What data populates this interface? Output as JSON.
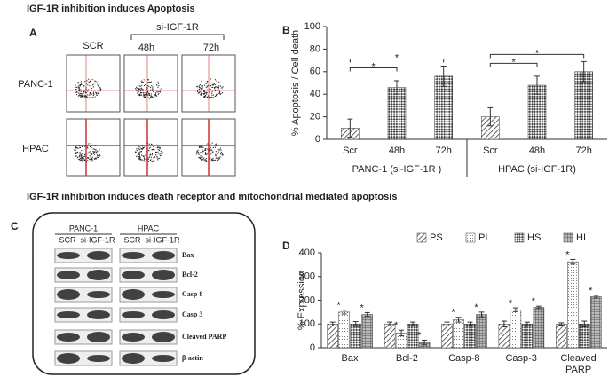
{
  "headings": [
    "IGF-1R inhibition induces Apoptosis",
    "IGF-1R inhibition induces  death receptor and mitochondrial mediated apoptosis"
  ],
  "panel_a": {
    "letter": "A",
    "columns": [
      "SCR",
      "48h",
      "72h"
    ],
    "group_label": "si-IGF-1R",
    "rows": [
      "PANC-1",
      "HPAC"
    ]
  },
  "panel_c": {
    "letter": "C",
    "groups": [
      {
        "name": "PANC-1",
        "lanes": [
          "SCR",
          "si-IGF-1R"
        ]
      },
      {
        "name": "HPAC",
        "lanes": [
          "SCR",
          "si-IGF-1R"
        ]
      }
    ],
    "bands": [
      "Bax",
      "Bcl-2",
      "Casp 8",
      "Casp 3",
      "Cleaved PARP",
      "β-actin"
    ]
  },
  "chart_data": [
    {
      "type": "bar",
      "panel": "B",
      "ylabel": "% Apoptosis / Cell death",
      "categories": [
        "Scr",
        "48h",
        "72h",
        "Scr",
        "48h",
        "72h"
      ],
      "groups": [
        "PANC-1 (si-IGF-1R )",
        "HPAC (si-IGF-1R)"
      ],
      "values": [
        10,
        46,
        56,
        20,
        48,
        60
      ],
      "errors": [
        8,
        6,
        9,
        8,
        8,
        9
      ],
      "ylim": [
        0,
        100
      ],
      "yticks": [
        0,
        20,
        40,
        60,
        80,
        100
      ],
      "significance_labels": [
        "*",
        "*",
        "*",
        "*"
      ],
      "color": "#333333"
    },
    {
      "type": "grouped_bar",
      "panel": "D",
      "ylabel": "% Expression",
      "categories": [
        "Bax",
        "Bcl-2",
        "Casp-8",
        "Casp-3",
        "Cleaved PARP"
      ],
      "series": [
        {
          "name": "PS",
          "values": [
            100,
            100,
            100,
            100,
            100
          ],
          "errors": [
            8,
            8,
            8,
            12,
            5
          ]
        },
        {
          "name": "PI",
          "values": [
            150,
            62,
            118,
            160,
            362
          ],
          "errors": [
            8,
            12,
            10,
            8,
            10
          ]
        },
        {
          "name": "HS",
          "values": [
            100,
            100,
            100,
            100,
            100
          ],
          "errors": [
            10,
            8,
            8,
            8,
            12
          ]
        },
        {
          "name": "HI",
          "values": [
            140,
            22,
            140,
            170,
            215
          ],
          "errors": [
            8,
            10,
            10,
            5,
            6
          ]
        }
      ],
      "ylim": [
        0,
        400
      ],
      "yticks": [
        0,
        100,
        200,
        300,
        400
      ],
      "significance_labels": [
        "*",
        "*",
        "*",
        "*",
        "*",
        "*",
        "*",
        "*",
        "*",
        "*"
      ],
      "legend": "top",
      "color": "#333333"
    }
  ]
}
